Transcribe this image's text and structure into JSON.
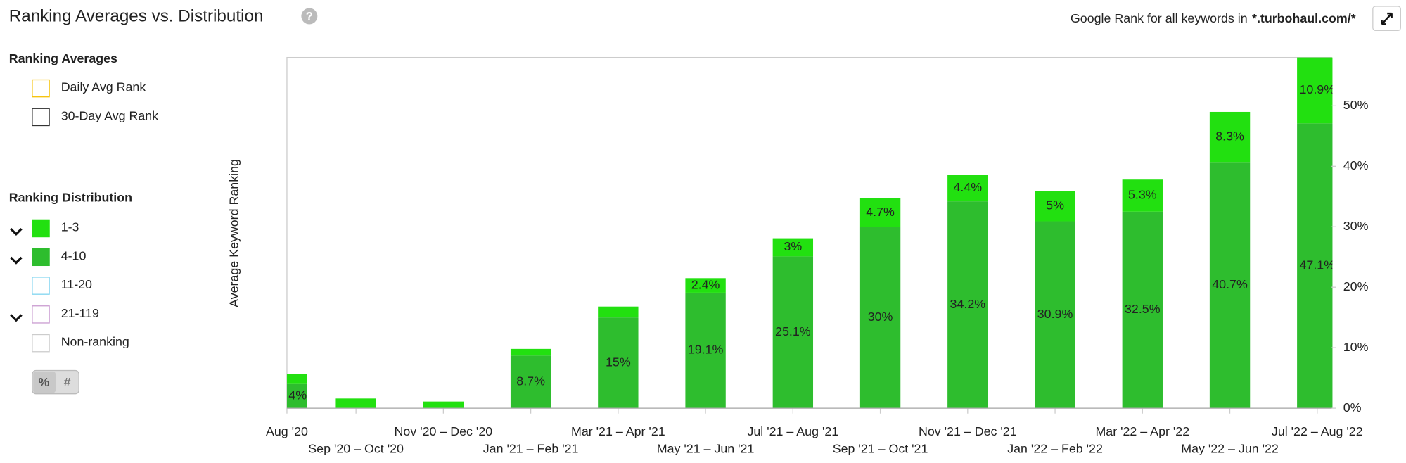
{
  "header": {
    "title": "Ranking Averages vs. Distribution",
    "scope_prefix": "Google Rank for all keywords in",
    "scope_domain": "*.turbohaul.com/*"
  },
  "ranking_averages": {
    "title": "Ranking Averages",
    "items": [
      "Daily Avg Rank",
      "30-Day Avg Rank"
    ]
  },
  "ranking_distribution": {
    "title": "Ranking Distribution",
    "extra_items": [
      "11-20",
      "21-119",
      "Non-ranking"
    ]
  },
  "toggle": [
    "%",
    "#"
  ],
  "chart_data": {
    "type": "stacked_bar",
    "y_label": "Average Keyword Ranking",
    "categories": [
      "Aug '20",
      "Sep '20 – Oct '20",
      "Nov '20 – Dec '20",
      "Jan '21 – Feb '21",
      "Mar '21 – Apr '21",
      "May '21 – Jun '21",
      "Jul '21 – Aug '21",
      "Sep '21 – Oct '21",
      "Nov '21 – Dec '21",
      "Jan '22 – Feb '22",
      "Mar '22 – Apr '22",
      "May '22 – Jun '22",
      "Jul '22 – Aug '22"
    ],
    "series": [
      {
        "name": "4-10",
        "color": "#2ebd2e",
        "values": [
          4,
          0,
          0,
          8.7,
          15,
          19.1,
          25.1,
          30,
          34.2,
          30.9,
          32.5,
          40.7,
          47.1
        ],
        "value_labels": [
          "4%",
          null,
          null,
          "8.7%",
          "15%",
          "19.1%",
          "25.1%",
          "30%",
          "34.2%",
          "30.9%",
          "32.5%",
          "40.7%",
          "47.1%"
        ]
      },
      {
        "name": "1-3",
        "color": "#22e010",
        "values": [
          1.7,
          1.6,
          1.1,
          1.1,
          1.8,
          2.4,
          3,
          4.7,
          4.4,
          5,
          5.3,
          8.3,
          10.9
        ],
        "value_labels": [
          null,
          null,
          null,
          null,
          null,
          "2.4%",
          "3%",
          "4.7%",
          "4.4%",
          "5%",
          "5.3%",
          "8.3%",
          "10.9%"
        ]
      }
    ],
    "ylim": [
      0,
      58
    ],
    "yticks": [
      {
        "value": 0,
        "label": "0%"
      },
      {
        "value": 10,
        "label": "10%"
      },
      {
        "value": 20,
        "label": "20%"
      },
      {
        "value": 30,
        "label": "30%"
      },
      {
        "value": 40,
        "label": "40%"
      },
      {
        "value": 50,
        "label": "50%"
      }
    ],
    "grid": false
  }
}
